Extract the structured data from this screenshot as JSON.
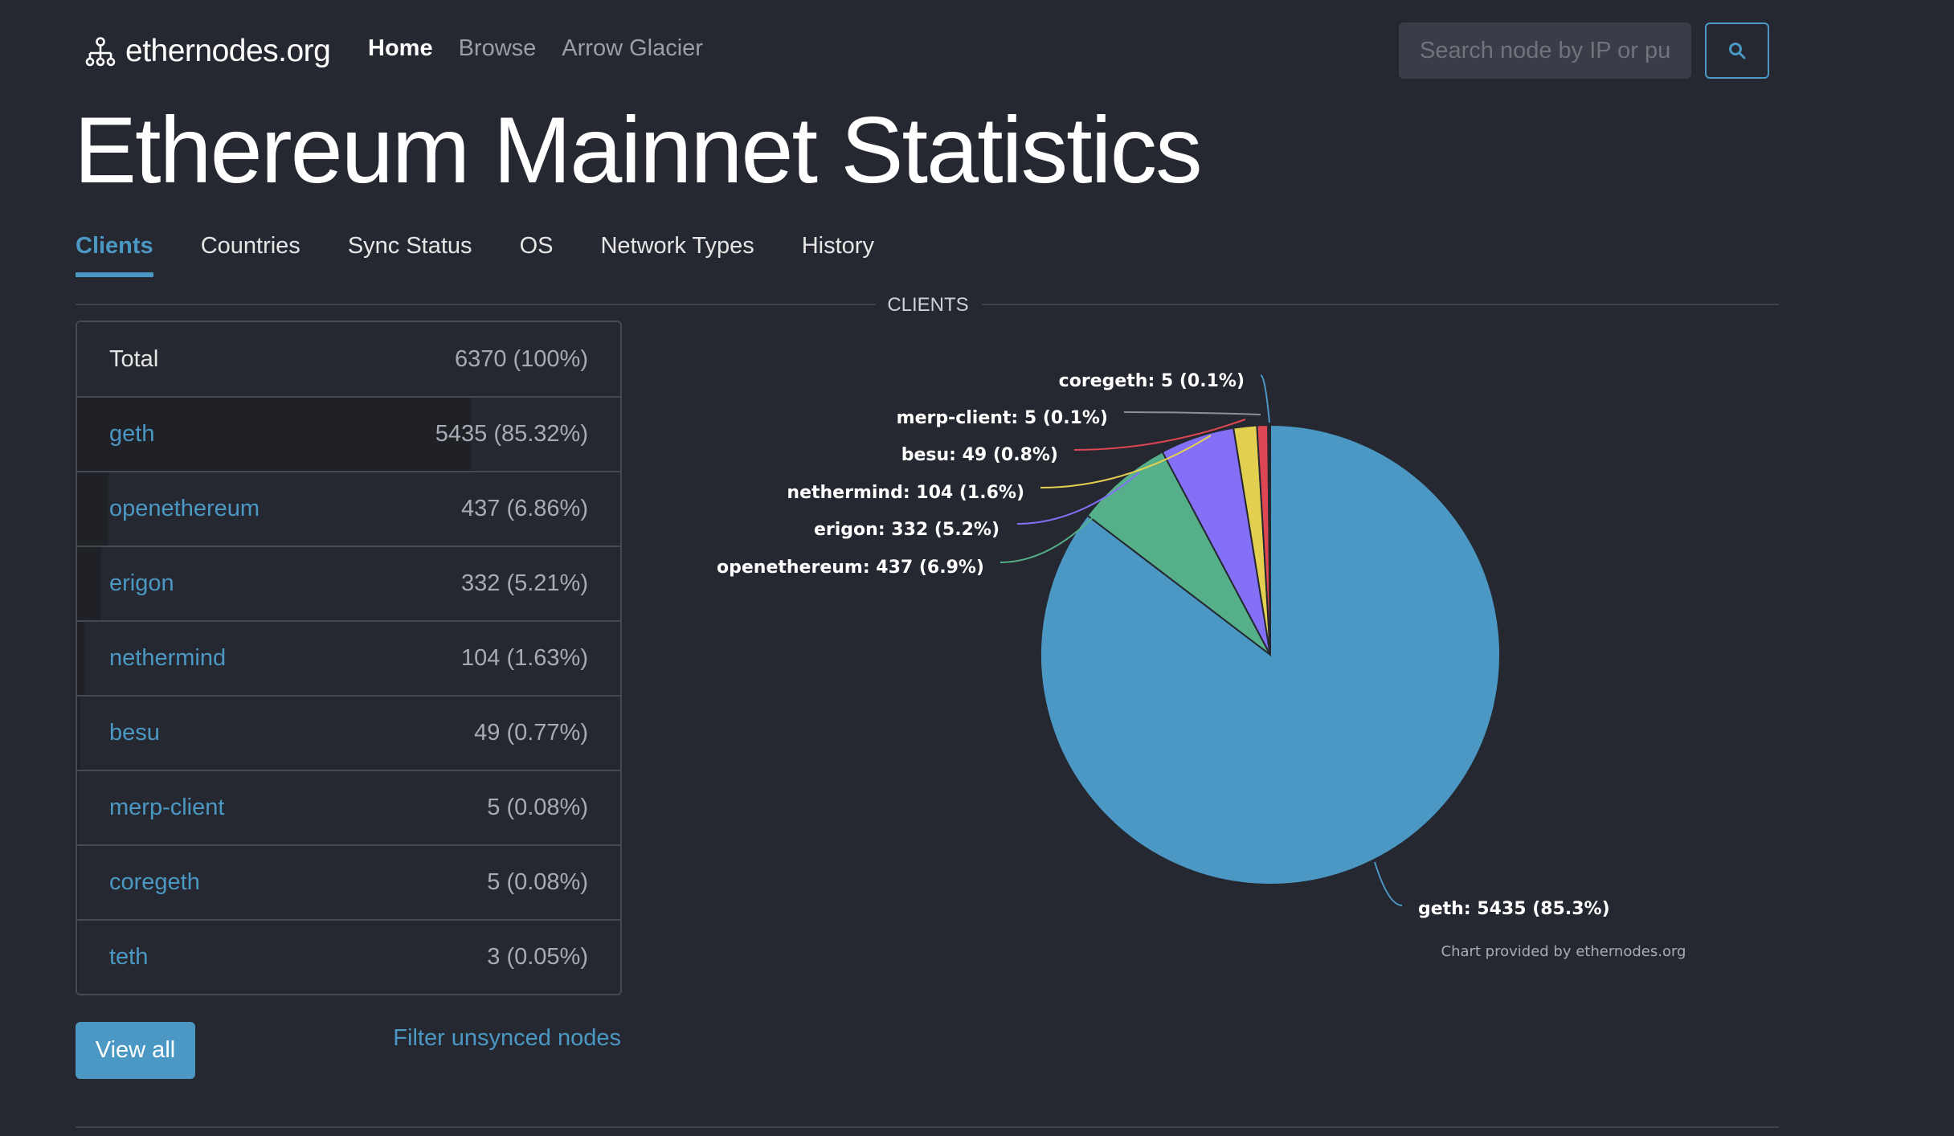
{
  "header": {
    "brand": "ethernodes.org",
    "nav": [
      {
        "label": "Home",
        "active": true
      },
      {
        "label": "Browse",
        "active": false
      },
      {
        "label": "Arrow Glacier",
        "active": false
      }
    ],
    "search_placeholder": "Search node by IP or pu",
    "search_icon": "search-icon"
  },
  "page_title": "Ethereum Mainnet Statistics",
  "tabs": [
    {
      "label": "Clients",
      "active": true
    },
    {
      "label": "Countries",
      "active": false
    },
    {
      "label": "Sync Status",
      "active": false
    },
    {
      "label": "OS",
      "active": false
    },
    {
      "label": "Network Types",
      "active": false
    },
    {
      "label": "History",
      "active": false
    }
  ],
  "section_title": "CLIENTS",
  "table": {
    "total_label": "Total",
    "total_value": "6370 (100%)",
    "rows": [
      {
        "name": "geth",
        "value": "5435 (85.32%)",
        "share": 85.32
      },
      {
        "name": "openethereum",
        "value": "437 (6.86%)",
        "share": 6.86
      },
      {
        "name": "erigon",
        "value": "332 (5.21%)",
        "share": 5.21
      },
      {
        "name": "nethermind",
        "value": "104 (1.63%)",
        "share": 1.63
      },
      {
        "name": "besu",
        "value": "49 (0.77%)",
        "share": 0.77
      },
      {
        "name": "merp-client",
        "value": "5 (0.08%)",
        "share": 0.08
      },
      {
        "name": "coregeth",
        "value": "5 (0.08%)",
        "share": 0.08
      },
      {
        "name": "teth",
        "value": "3 (0.05%)",
        "share": 0.05
      }
    ]
  },
  "buttons": {
    "view_all": "View all",
    "filter": "Filter unsynced nodes"
  },
  "chart_data": {
    "type": "pie",
    "title": "CLIENTS",
    "slices": [
      {
        "name": "geth",
        "value": 5435,
        "label": "geth: 5435 (85.3%)",
        "color": "#4c98c4"
      },
      {
        "name": "openethereum",
        "value": 437,
        "label": "openethereum: 437 (6.9%)",
        "color": "#55b08a"
      },
      {
        "name": "erigon",
        "value": 332,
        "label": "erigon: 332 (5.2%)",
        "color": "#8470f7"
      },
      {
        "name": "nethermind",
        "value": 104,
        "label": "nethermind: 104 (1.6%)",
        "color": "#e3d050"
      },
      {
        "name": "besu",
        "value": 49,
        "label": "besu: 49 (0.8%)",
        "color": "#dd4652"
      },
      {
        "name": "merp-client",
        "value": 5,
        "label": "merp-client: 5 (0.1%)",
        "color": "#8a8f99"
      },
      {
        "name": "coregeth",
        "value": 5,
        "label": "coregeth: 5 (0.1%)",
        "color": "#4c98c4"
      }
    ],
    "credit": "Chart provided by ethernodes.org"
  }
}
